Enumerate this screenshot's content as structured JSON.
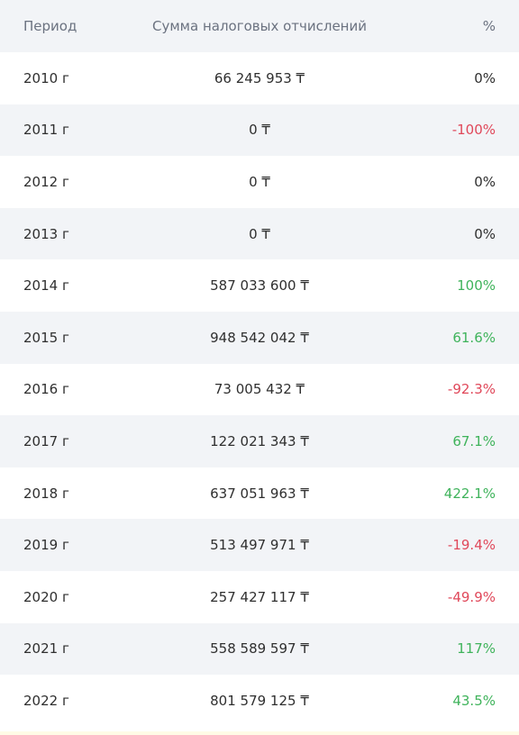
{
  "header": {
    "period": "Период",
    "amount": "Сумма налоговых отчислений",
    "percent": "%"
  },
  "rows": [
    {
      "period": "2010 г",
      "amount": "66 245 953 ₸",
      "percent": "0%",
      "trend": "zero"
    },
    {
      "period": "2011 г",
      "amount": "0 ₸",
      "percent": "-100%",
      "trend": "neg"
    },
    {
      "period": "2012 г",
      "amount": "0 ₸",
      "percent": "0%",
      "trend": "zero"
    },
    {
      "period": "2013 г",
      "amount": "0 ₸",
      "percent": "0%",
      "trend": "zero"
    },
    {
      "period": "2014 г",
      "amount": "587 033 600 ₸",
      "percent": "100%",
      "trend": "pos"
    },
    {
      "period": "2015 г",
      "amount": "948 542 042 ₸",
      "percent": "61.6%",
      "trend": "pos"
    },
    {
      "period": "2016 г",
      "amount": "73 005 432 ₸",
      "percent": "-92.3%",
      "trend": "neg"
    },
    {
      "period": "2017 г",
      "amount": "122 021 343 ₸",
      "percent": "67.1%",
      "trend": "pos"
    },
    {
      "period": "2018 г",
      "amount": "637 051 963 ₸",
      "percent": "422.1%",
      "trend": "pos"
    },
    {
      "period": "2019 г",
      "amount": "513 497 971 ₸",
      "percent": "-19.4%",
      "trend": "neg"
    },
    {
      "period": "2020 г",
      "amount": "257 427 117 ₸",
      "percent": "-49.9%",
      "trend": "neg"
    },
    {
      "period": "2021 г",
      "amount": "558 589 597 ₸",
      "percent": "117%",
      "trend": "pos"
    },
    {
      "period": "2022 г",
      "amount": "801 579 125 ₸",
      "percent": "43.5%",
      "trend": "pos"
    }
  ],
  "colors": {
    "positive": "#3fb35b",
    "negative": "#e0485a",
    "stripe": "#f2f4f7"
  }
}
